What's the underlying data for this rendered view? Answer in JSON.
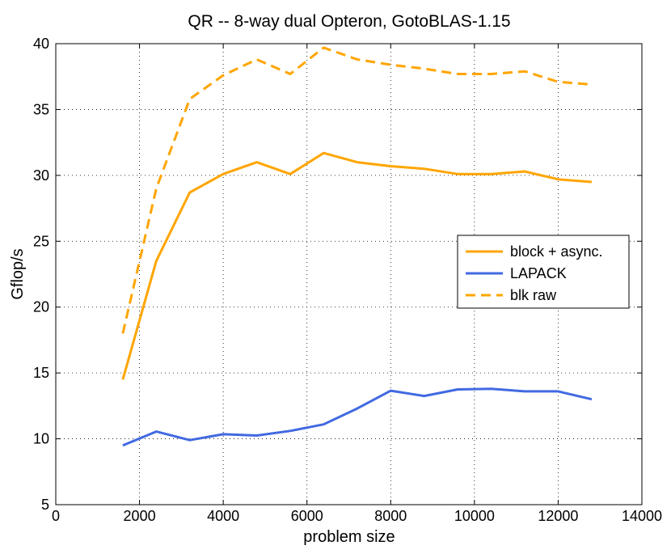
{
  "chart_data": {
    "type": "line",
    "title": "QR -- 8-way dual Opteron, GotoBLAS-1.15",
    "xlabel": "problem size",
    "ylabel": "Gflop/s",
    "xlim": [
      0,
      14000
    ],
    "ylim": [
      5,
      40
    ],
    "xticks": [
      0,
      2000,
      4000,
      6000,
      8000,
      10000,
      12000,
      14000
    ],
    "yticks": [
      5,
      10,
      15,
      20,
      25,
      30,
      35,
      40
    ],
    "grid": true,
    "legend_position": "right",
    "series": [
      {
        "name": "block + async.",
        "color": "#FFA500",
        "style": "solid",
        "x": [
          1600,
          2400,
          3200,
          4000,
          4800,
          5600,
          6400,
          7200,
          8000,
          8800,
          9600,
          10400,
          11200,
          12000,
          12800
        ],
        "y": [
          14.5,
          23.5,
          28.7,
          30.1,
          31.0,
          30.1,
          31.7,
          31.0,
          30.7,
          30.5,
          30.1,
          30.1,
          30.3,
          29.7,
          29.5
        ]
      },
      {
        "name": "LAPACK",
        "color": "#4169E1",
        "style": "solid",
        "x": [
          1600,
          2400,
          3200,
          4000,
          4800,
          5600,
          6400,
          7200,
          8000,
          8800,
          9600,
          10400,
          11200,
          12000,
          12800
        ],
        "y": [
          9.5,
          10.55,
          9.9,
          10.35,
          10.25,
          10.6,
          11.1,
          12.3,
          13.65,
          13.25,
          13.75,
          13.8,
          13.6,
          13.6,
          13.0
        ]
      },
      {
        "name": "blk raw",
        "color": "#FFA500",
        "style": "dashed",
        "x": [
          1600,
          2400,
          3200,
          4000,
          4800,
          5600,
          6400,
          7200,
          8000,
          8800,
          9600,
          10400,
          11200,
          12000,
          12800
        ],
        "y": [
          18.0,
          29.0,
          35.8,
          37.6,
          38.8,
          37.7,
          39.7,
          38.8,
          38.4,
          38.1,
          37.7,
          37.7,
          37.9,
          37.1,
          36.9
        ]
      }
    ]
  }
}
